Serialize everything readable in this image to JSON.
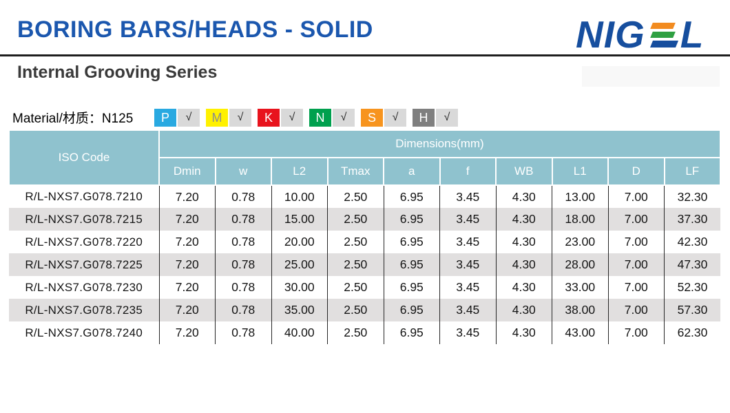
{
  "header": {
    "title": "BORING BARS/HEADS - SOLID",
    "subtitle": "Internal Grooving Series",
    "logo_text_left": "NIG",
    "logo_text_right": "L"
  },
  "colors": {
    "title_blue": "#1B57AE",
    "logo_blue": "#164E9E",
    "logo_bar_orange": "#F28B1F",
    "logo_bar_green": "#2FA042",
    "logo_bar_blue": "#164E9E",
    "table_header_teal": "#8FC2CE",
    "alt_row_gray": "#E1DFDF",
    "check_box_gray": "#D9D9D9"
  },
  "material": {
    "label": "Material/材质：N125",
    "check_mark": "√",
    "grades": [
      {
        "letter": "P",
        "bg": "#29A9E1",
        "fg": "#FFFFFF"
      },
      {
        "letter": "M",
        "bg": "#FFF100",
        "fg": "#8C8C8C"
      },
      {
        "letter": "K",
        "bg": "#E8131D",
        "fg": "#FFFFFF"
      },
      {
        "letter": "N",
        "bg": "#00A04E",
        "fg": "#FFFFFF"
      },
      {
        "letter": "S",
        "bg": "#F7941E",
        "fg": "#FFFFFF"
      },
      {
        "letter": "H",
        "bg": "#7F7F7F",
        "fg": "#FFFFFF"
      }
    ]
  },
  "table": {
    "iso_header": "ISO Code",
    "dim_header": "Dimensions(mm)",
    "columns": [
      "Dmin",
      "w",
      "L2",
      "Tmax",
      "a",
      "f",
      "WB",
      "L1",
      "D",
      "LF"
    ],
    "rows": [
      {
        "iso": "R/L-NXS7.G078.7210",
        "values": [
          "7.20",
          "0.78",
          "10.00",
          "2.50",
          "6.95",
          "3.45",
          "4.30",
          "13.00",
          "7.00",
          "32.30"
        ]
      },
      {
        "iso": "R/L-NXS7.G078.7215",
        "values": [
          "7.20",
          "0.78",
          "15.00",
          "2.50",
          "6.95",
          "3.45",
          "4.30",
          "18.00",
          "7.00",
          "37.30"
        ]
      },
      {
        "iso": "R/L-NXS7.G078.7220",
        "values": [
          "7.20",
          "0.78",
          "20.00",
          "2.50",
          "6.95",
          "3.45",
          "4.30",
          "23.00",
          "7.00",
          "42.30"
        ]
      },
      {
        "iso": "R/L-NXS7.G078.7225",
        "values": [
          "7.20",
          "0.78",
          "25.00",
          "2.50",
          "6.95",
          "3.45",
          "4.30",
          "28.00",
          "7.00",
          "47.30"
        ]
      },
      {
        "iso": "R/L-NXS7.G078.7230",
        "values": [
          "7.20",
          "0.78",
          "30.00",
          "2.50",
          "6.95",
          "3.45",
          "4.30",
          "33.00",
          "7.00",
          "52.30"
        ]
      },
      {
        "iso": "R/L-NXS7.G078.7235",
        "values": [
          "7.20",
          "0.78",
          "35.00",
          "2.50",
          "6.95",
          "3.45",
          "4.30",
          "38.00",
          "7.00",
          "57.30"
        ]
      },
      {
        "iso": "R/L-NXS7.G078.7240",
        "values": [
          "7.20",
          "0.78",
          "40.00",
          "2.50",
          "6.95",
          "3.45",
          "4.30",
          "43.00",
          "7.00",
          "62.30"
        ]
      }
    ]
  }
}
